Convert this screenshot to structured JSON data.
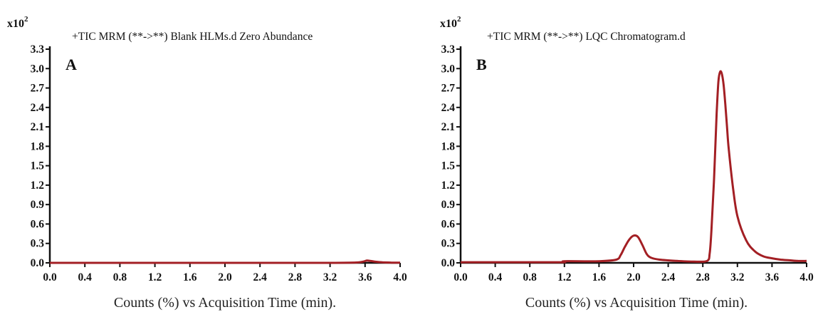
{
  "chart_data": [
    {
      "type": "line",
      "panel": "A",
      "title": "+TIC MRM (**->**) Blank HLMs.d Zero Abundance",
      "xlabel": "Counts (%) vs Acquisition Time (min).",
      "ylabel": "",
      "y_multiplier": "x10",
      "y_multiplier_exp": "2",
      "xlim": [
        0,
        4.0
      ],
      "ylim": [
        0,
        3.3
      ],
      "x_ticks": [
        "0.0",
        "0.4",
        "0.8",
        "1.2",
        "1.6",
        "2.0",
        "2.4",
        "2.8",
        "3.2",
        "3.6",
        "4.0"
      ],
      "y_ticks": [
        "0.0",
        "0.3",
        "0.6",
        "0.9",
        "1.2",
        "1.5",
        "1.8",
        "2.1",
        "2.4",
        "2.7",
        "3.0",
        "3.3"
      ],
      "series_color": "#a31f24",
      "series": [
        {
          "x": [
            0.0,
            0.4,
            0.8,
            1.2,
            1.6,
            2.0,
            2.4,
            2.8,
            3.2,
            3.5,
            3.58,
            3.62,
            3.66,
            3.72,
            3.8,
            3.9,
            4.0
          ],
          "y": [
            0.0,
            0.0,
            0.0,
            0.0,
            0.0,
            0.0,
            0.0,
            0.0,
            0.0,
            0.005,
            0.02,
            0.035,
            0.03,
            0.018,
            0.008,
            0.003,
            0.002
          ]
        }
      ]
    },
    {
      "type": "line",
      "panel": "B",
      "title": "+TIC MRM (**->**) LQC Chromatogram.d",
      "xlabel": "Counts (%) vs Acquisition Time (min).",
      "ylabel": "",
      "y_multiplier": "x10",
      "y_multiplier_exp": "2",
      "xlim": [
        0,
        4.0
      ],
      "ylim": [
        0,
        3.3
      ],
      "x_ticks": [
        "0.0",
        "0.4",
        "0.8",
        "1.2",
        "1.6",
        "2.0",
        "2.4",
        "2.8",
        "3.2",
        "3.6",
        "4.0"
      ],
      "y_ticks": [
        "0.0",
        "0.3",
        "0.6",
        "0.9",
        "1.2",
        "1.5",
        "1.8",
        "2.1",
        "2.4",
        "2.7",
        "3.0",
        "3.3"
      ],
      "series_color": "#a31f24",
      "series": [
        {
          "x": [
            0.0,
            0.4,
            0.8,
            1.19,
            1.2,
            1.6,
            1.8,
            1.85,
            1.9,
            1.95,
            2.0,
            2.05,
            2.1,
            2.15,
            2.2,
            2.3,
            2.5,
            2.7,
            2.85,
            2.88,
            2.9,
            2.93,
            2.96,
            2.98,
            3.0,
            3.02,
            3.04,
            3.06,
            3.08,
            3.1,
            3.15,
            3.2,
            3.3,
            3.4,
            3.5,
            3.6,
            3.7,
            3.8,
            3.9,
            4.0
          ],
          "y": [
            0.01,
            0.01,
            0.01,
            0.01,
            0.025,
            0.025,
            0.05,
            0.12,
            0.25,
            0.36,
            0.42,
            0.4,
            0.28,
            0.14,
            0.08,
            0.05,
            0.03,
            0.02,
            0.03,
            0.15,
            0.5,
            1.3,
            2.3,
            2.8,
            2.95,
            2.92,
            2.75,
            2.45,
            2.1,
            1.75,
            1.15,
            0.72,
            0.35,
            0.18,
            0.1,
            0.07,
            0.05,
            0.04,
            0.03,
            0.03
          ]
        }
      ]
    }
  ]
}
